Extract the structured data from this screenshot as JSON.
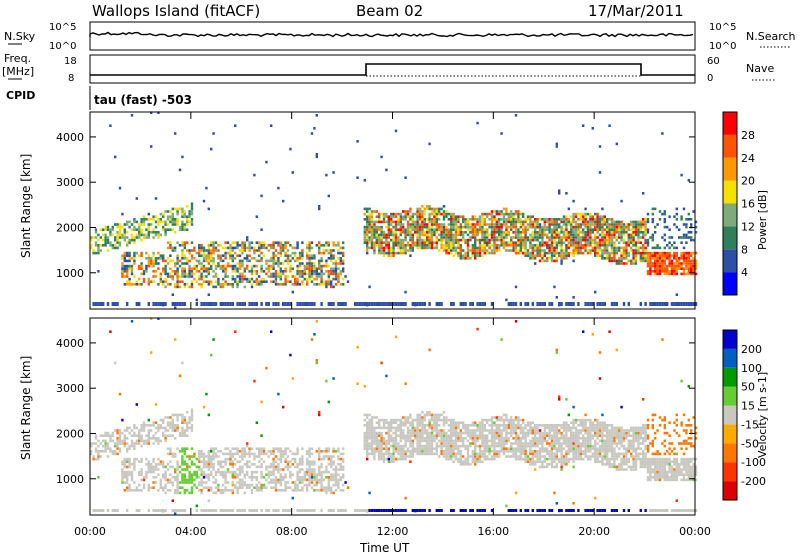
{
  "header": {
    "station": "Wallops Island (fitACF)",
    "beam": "Beam 02",
    "date": "17/Mar/2011"
  },
  "noise_panel": {
    "left_label": "N.Sky",
    "right_label": "N.Search",
    "left_ticks": [
      "10^5",
      "10^0"
    ],
    "right_ticks": [
      "10^5",
      "10^0"
    ]
  },
  "freq_panel": {
    "left_label_1": "Freq.",
    "left_label_2": "[MHz]",
    "right_label": "Nave",
    "left_ticks": [
      "18",
      "8"
    ],
    "right_ticks": [
      "60",
      "0"
    ],
    "cpid_label": "CPID",
    "cpid_value": "tau (fast) -503"
  },
  "colors": {
    "power_scale": [
      "#0000ff",
      "#2e4fa8",
      "#2f7f5a",
      "#7faa7a",
      "#f5e000",
      "#ff9900",
      "#ff5500",
      "#ff0000"
    ],
    "velocity_scale": [
      "#0000cc",
      "#0060c0",
      "#009900",
      "#66cc33",
      "#c8c8c0",
      "#ffaa00",
      "#ff7700",
      "#ff3300",
      "#dd0000"
    ]
  },
  "chart_data": [
    {
      "type": "heatmap",
      "name": "power-panel",
      "ylabel": "Slant Range [km]",
      "yticks": [
        "1000",
        "2000",
        "3000",
        "4000"
      ],
      "ylim": [
        200,
        4550
      ],
      "xlim_hours": [
        0,
        24
      ],
      "colorbar": {
        "label": "Power [dB]",
        "ticks": [
          "4",
          "8",
          "12",
          "16",
          "20",
          "24",
          "28"
        ],
        "range": [
          0,
          32
        ]
      },
      "approx_bands": [
        {
          "start_h": 0.0,
          "end_h": 4.0,
          "range_km_start": [
            1350,
            2000
          ],
          "range_km_end": [
            1900,
            2500
          ],
          "power_db": 10
        },
        {
          "start_h": 1.2,
          "end_h": 10.0,
          "range_km": [
            600,
            1500
          ],
          "power_db": 16
        },
        {
          "start_h": 10.8,
          "end_h": 22.0,
          "range_km": [
            1400,
            2500
          ],
          "power_db": 12
        },
        {
          "start_h": 22.0,
          "end_h": 24.0,
          "range_km": [
            900,
            1500
          ],
          "power_db": 24
        }
      ]
    },
    {
      "type": "heatmap",
      "name": "velocity-panel",
      "ylabel": "Slant Range [km]",
      "xlabel": "Time UT",
      "yticks": [
        "1000",
        "2000",
        "3000",
        "4000"
      ],
      "xticks": [
        "00:00",
        "04:00",
        "08:00",
        "12:00",
        "16:00",
        "20:00",
        "00:00"
      ],
      "ylim": [
        200,
        4550
      ],
      "xlim_hours": [
        0,
        24
      ],
      "colorbar": {
        "label": "Velocity [m s-1]",
        "ticks": [
          "200",
          "100",
          "50",
          "15",
          "-15",
          "-50",
          "-100",
          "-200"
        ],
        "range": [
          -250,
          250
        ]
      }
    }
  ]
}
